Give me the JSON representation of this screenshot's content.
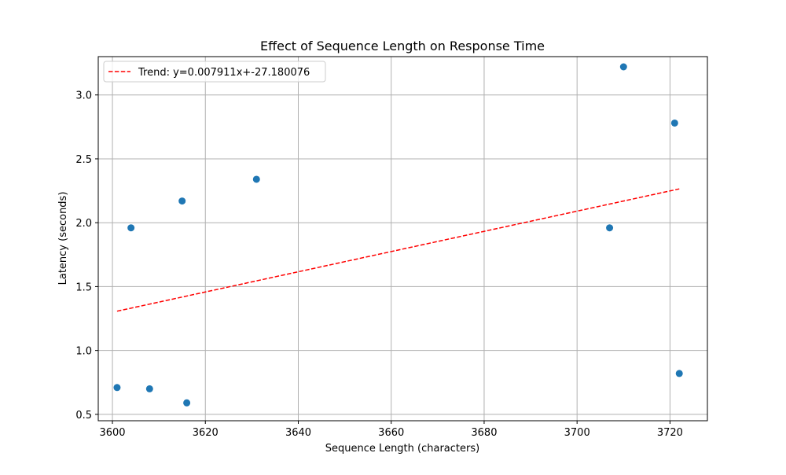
{
  "chart_data": {
    "type": "scatter",
    "title": "Effect of Sequence Length on Response Time",
    "xlabel": "Sequence Length (characters)",
    "ylabel": "Latency (seconds)",
    "xlim": [
      3596.95,
      3728.05
    ],
    "ylim": [
      0.45,
      3.3
    ],
    "xticks": [
      3600,
      3620,
      3640,
      3660,
      3680,
      3700,
      3720
    ],
    "yticks": [
      0.5,
      1.0,
      1.5,
      2.0,
      2.5,
      3.0
    ],
    "xtick_labels": [
      "3600",
      "3620",
      "3640",
      "3660",
      "3680",
      "3700",
      "3720"
    ],
    "ytick_labels": [
      "0.5",
      "1.0",
      "1.5",
      "2.0",
      "2.5",
      "3.0"
    ],
    "grid": true,
    "legend_position": "top-left",
    "points": {
      "x": [
        3601,
        3604,
        3608,
        3615,
        3616,
        3631,
        3707,
        3710,
        3721,
        3722
      ],
      "y": [
        0.71,
        1.96,
        0.7,
        2.17,
        0.59,
        2.34,
        1.96,
        3.22,
        2.78,
        0.82
      ],
      "color": "#1f77b4"
    },
    "trend": {
      "name": "Trend: y=0.007911x+-27.180076",
      "slope": 0.007911,
      "intercept": -27.180076,
      "x_range": [
        3601,
        3722
      ],
      "color": "#ff0000",
      "style": "dashed"
    }
  }
}
